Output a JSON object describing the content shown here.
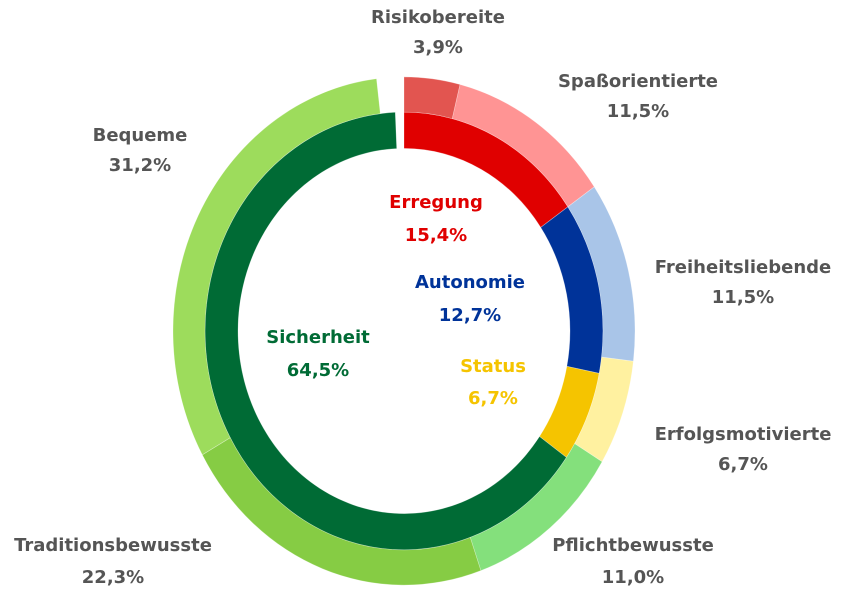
{
  "chart_data": {
    "type": "donut",
    "rings": [
      {
        "categories": [
          "Erregung",
          "Autonomie",
          "Status",
          "Sicherheit"
        ],
        "values": [
          15.4,
          12.7,
          6.7,
          64.5
        ],
        "value_labels": [
          "15,4%",
          "12,7%",
          "6,7%",
          "64,5%"
        ],
        "colors": [
          "#e00000",
          "#003399",
          "#f5c400",
          "#006b35"
        ]
      },
      {
        "categories": [
          "Risikobereite",
          "Spaßorientierte",
          "Freiheitsliebende",
          "Erfolgsmotivierte",
          "Pflichtbewusste",
          "Traditionsbewusste",
          "Bequeme"
        ],
        "values": [
          3.9,
          11.5,
          11.5,
          6.7,
          11.0,
          22.3,
          31.2
        ],
        "value_labels": [
          "3,9%",
          "11,5%",
          "11,5%",
          "6,7%",
          "11,0%",
          "22,3%",
          "31,2%"
        ],
        "colors": [
          "#e25550",
          "#ff9494",
          "#a9c5e8",
          "#fff1a0",
          "#84e07c",
          "#86cc44",
          "#9ddc5c"
        ]
      }
    ]
  }
}
